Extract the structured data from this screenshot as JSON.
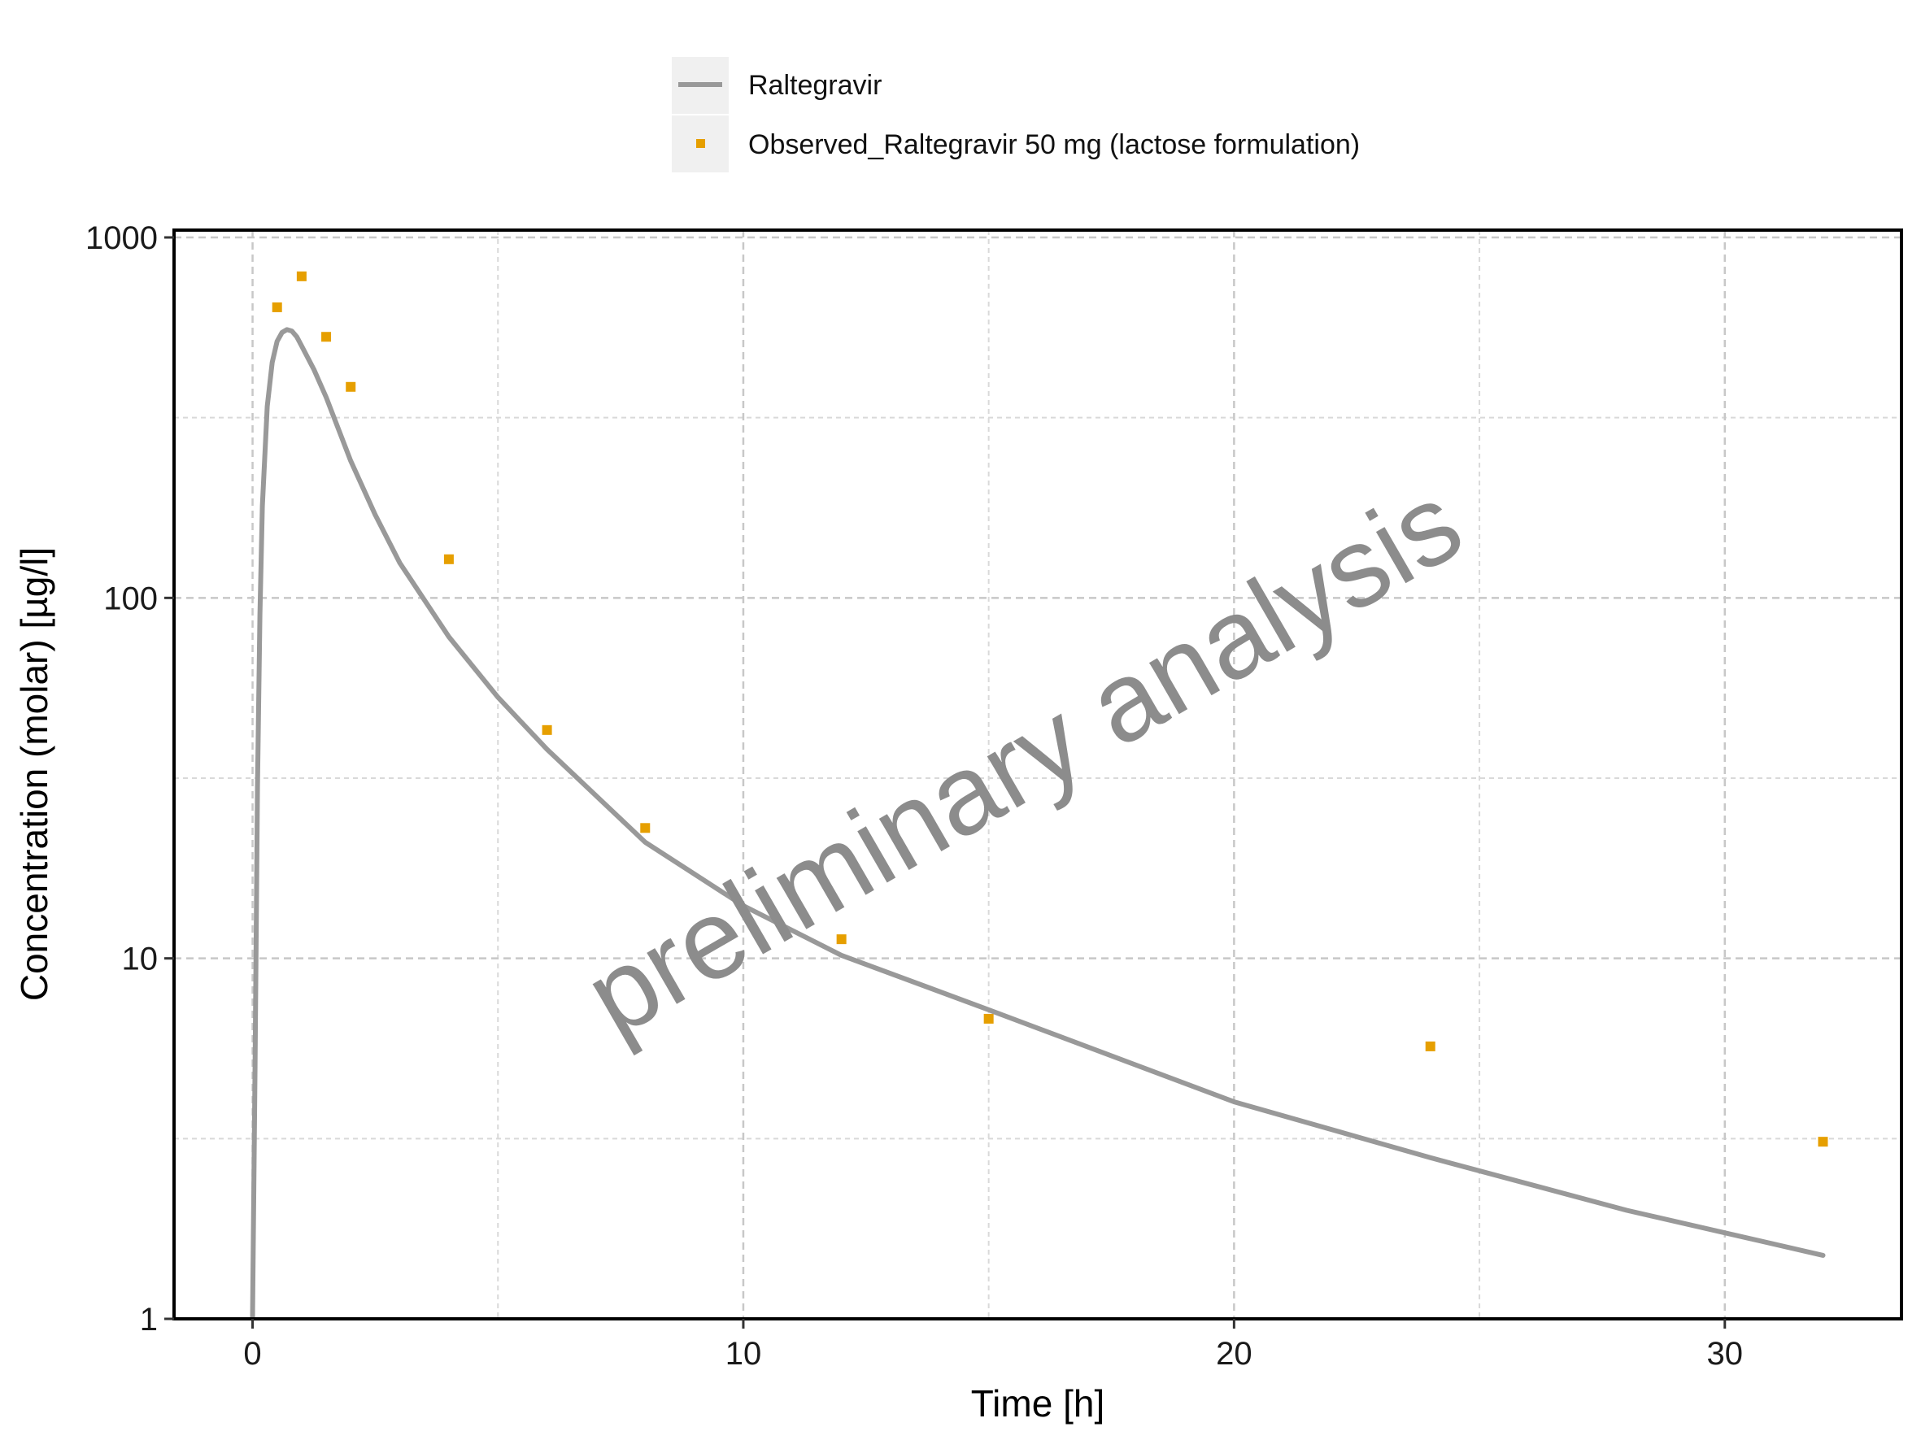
{
  "chart_data": {
    "type": "line",
    "title": "",
    "xlabel": "Time [h]",
    "ylabel": "Concentration (molar) [µg/l]",
    "xlim": [
      -1.6,
      33.6
    ],
    "ylim": [
      1,
      1000
    ],
    "y_scale": "log",
    "x_ticks": [
      "0",
      "10",
      "20",
      "30"
    ],
    "y_ticks": [
      "1",
      "10",
      "100",
      "1000"
    ],
    "grid": true,
    "legend_position": "top",
    "watermark": "preliminary analysis",
    "series": [
      {
        "name": "Raltegravir",
        "kind": "line",
        "color": "#999999",
        "x": [
          0,
          0.05,
          0.1,
          0.15,
          0.2,
          0.3,
          0.4,
          0.5,
          0.6,
          0.7,
          0.8,
          0.9,
          1.0,
          1.25,
          1.5,
          2,
          2.5,
          3,
          4,
          5,
          6,
          8,
          10,
          12,
          15,
          20,
          24,
          28,
          32
        ],
        "y": [
          1,
          5,
          30,
          90,
          180,
          340,
          450,
          515,
          545,
          555,
          550,
          530,
          500,
          430,
          360,
          240,
          170,
          125,
          78,
          53,
          38,
          21,
          14,
          10.2,
          7.2,
          4.0,
          2.8,
          2.0,
          1.5
        ]
      },
      {
        "name": "Observed_Raltegravir 50 mg (lactose formulation)",
        "kind": "scatter",
        "color": "#E69F00",
        "x": [
          0.5,
          1,
          1.5,
          2,
          4,
          6,
          8,
          12,
          15,
          24,
          32
        ],
        "y": [
          640,
          780,
          530,
          385,
          128,
          43,
          23,
          11.3,
          6.8,
          5.7,
          3.1
        ]
      }
    ]
  }
}
